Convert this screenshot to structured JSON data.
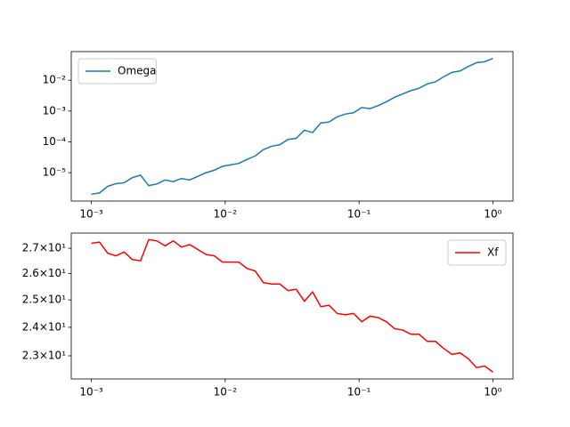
{
  "chart_data": [
    {
      "type": "line",
      "log_x": true,
      "log_y": true,
      "legend": "upper left",
      "x": [
        0.001,
        0.001151,
        0.001326,
        0.001526,
        0.001758,
        0.002024,
        0.00233,
        0.002683,
        0.003089,
        0.003556,
        0.004095,
        0.004715,
        0.005429,
        0.006251,
        0.007197,
        0.008286,
        0.009541,
        0.01099,
        0.01265,
        0.01456,
        0.01677,
        0.01931,
        0.02223,
        0.0256,
        0.02947,
        0.03393,
        0.03907,
        0.04498,
        0.05179,
        0.05964,
        0.06866,
        0.07906,
        0.09103,
        0.1048,
        0.1207,
        0.1389,
        0.16,
        0.1842,
        0.2121,
        0.2442,
        0.2812,
        0.3237,
        0.3728,
        0.4292,
        0.4942,
        0.569,
        0.6551,
        0.7543,
        0.8685,
        1
      ],
      "series": [
        {
          "name": "Omega",
          "color": "#1f77b4",
          "values": [
            2e-06,
            2.2e-06,
            3.6e-06,
            4.4e-06,
            4.7e-06,
            6.9e-06,
            8.3e-06,
            3.8e-06,
            4.3e-06,
            5.8e-06,
            5.1e-06,
            6.5e-06,
            5.8e-06,
            7.6e-06,
            1e-05,
            1.2e-05,
            1.6e-05,
            1.8e-05,
            2e-05,
            2.7e-05,
            3.5e-05,
            5.6e-05,
            7.2e-05,
            8.1e-05,
            0.00012,
            0.00013,
            0.00024,
            0.0002,
            0.00041,
            0.00044,
            0.00065,
            0.0008,
            0.00088,
            0.0013,
            0.0012,
            0.0015,
            0.002,
            0.0028,
            0.0036,
            0.0046,
            0.0055,
            0.0076,
            0.0089,
            0.013,
            0.018,
            0.02,
            0.028,
            0.037,
            0.04,
            0.051
          ]
        }
      ],
      "xlim": [
        0.000708,
        1.413
      ],
      "xticks": [
        {
          "value": 0.001,
          "label": "10⁻³"
        },
        {
          "value": 0.01,
          "label": "10⁻²"
        },
        {
          "value": 0.1,
          "label": "10⁻¹"
        },
        {
          "value": 1,
          "label": "10⁰"
        }
      ],
      "ylim": [
        1.2e-06,
        0.085
      ],
      "yticks": [
        {
          "value": 1e-05,
          "label": "10⁻⁵"
        },
        {
          "value": 0.0001,
          "label": "10⁻⁴"
        },
        {
          "value": 0.001,
          "label": "10⁻³"
        },
        {
          "value": 0.01,
          "label": "10⁻²"
        }
      ]
    },
    {
      "type": "line",
      "log_x": true,
      "log_y": true,
      "legend": "upper right",
      "x": [
        0.001,
        0.001151,
        0.001326,
        0.001526,
        0.001758,
        0.002024,
        0.00233,
        0.002683,
        0.003089,
        0.003556,
        0.004095,
        0.004715,
        0.005429,
        0.006251,
        0.007197,
        0.008286,
        0.009541,
        0.01099,
        0.01265,
        0.01456,
        0.01677,
        0.01931,
        0.02223,
        0.0256,
        0.02947,
        0.03393,
        0.03907,
        0.04498,
        0.05179,
        0.05964,
        0.06866,
        0.07906,
        0.09103,
        0.1048,
        0.1207,
        0.1389,
        0.16,
        0.1842,
        0.2121,
        0.2442,
        0.2812,
        0.3237,
        0.3728,
        0.4292,
        0.4942,
        0.569,
        0.6551,
        0.7543,
        0.8685,
        1
      ],
      "series": [
        {
          "name": "Xf",
          "color": "#ff0000",
          "values": [
            27.2,
            27.25,
            26.8,
            26.7,
            26.85,
            26.55,
            26.5,
            27.35,
            27.3,
            27.1,
            27.3,
            27.05,
            27.15,
            26.95,
            26.75,
            26.7,
            26.45,
            26.45,
            26.45,
            26.2,
            26.1,
            25.65,
            25.6,
            25.6,
            25.35,
            25.4,
            24.95,
            25.3,
            24.75,
            24.8,
            24.5,
            24.45,
            24.5,
            24.2,
            24.4,
            24.35,
            24.2,
            23.95,
            23.9,
            23.75,
            23.75,
            23.5,
            23.5,
            23.25,
            23.05,
            23.1,
            22.9,
            22.6,
            22.65,
            22.45
          ]
        }
      ],
      "xlim": [
        0.000708,
        1.413
      ],
      "xticks": [
        {
          "value": 0.001,
          "label": "10⁻³"
        },
        {
          "value": 0.01,
          "label": "10⁻²"
        },
        {
          "value": 0.1,
          "label": "10⁻¹"
        },
        {
          "value": 1,
          "label": "10⁰"
        }
      ],
      "ylim": [
        22.22,
        27.62
      ],
      "yticks": [
        {
          "value": 23,
          "label": "2.3×10¹"
        },
        {
          "value": 24,
          "label": "2.4×10¹"
        },
        {
          "value": 25,
          "label": "2.5×10¹"
        },
        {
          "value": 26,
          "label": "2.6×10¹"
        },
        {
          "value": 27,
          "label": "2.7×10¹"
        }
      ]
    }
  ]
}
